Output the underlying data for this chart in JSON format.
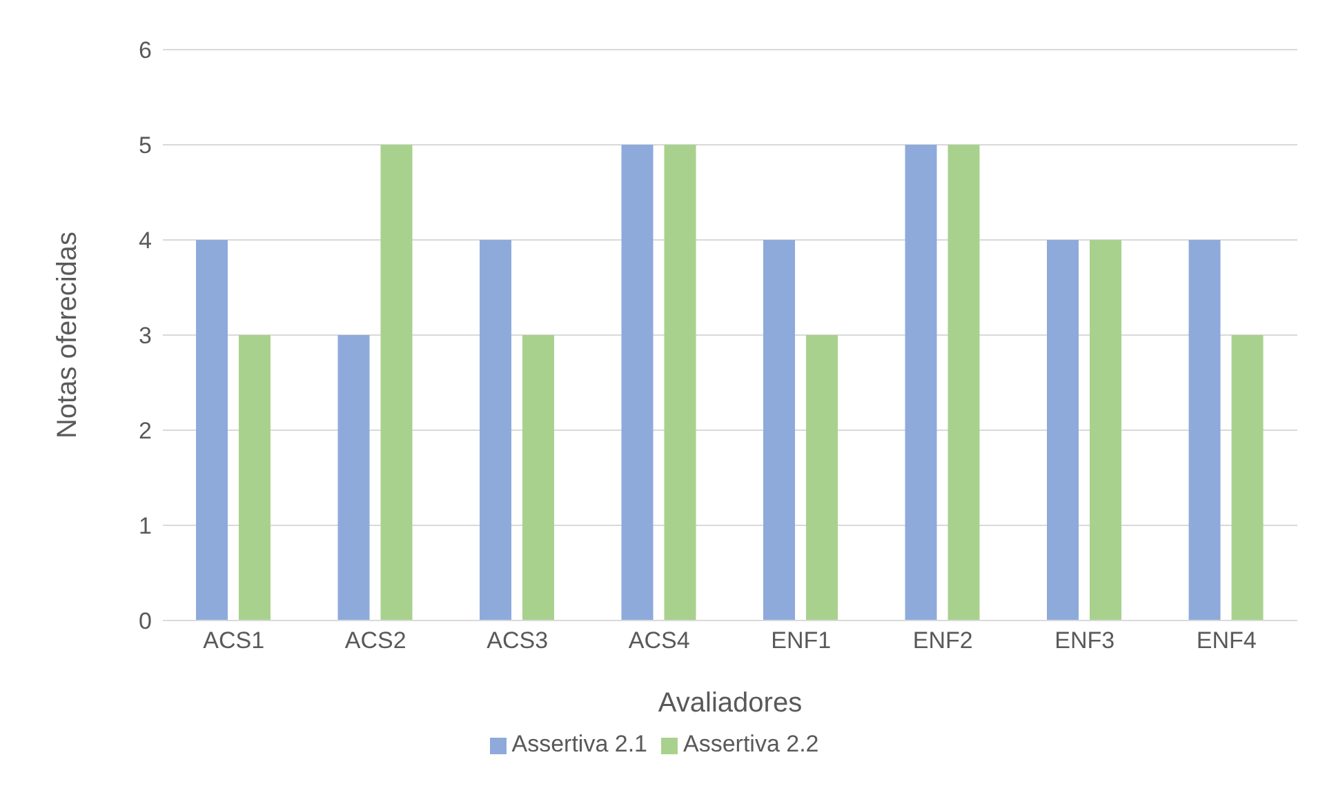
{
  "chart_data": {
    "type": "bar",
    "xlabel": "Avaliadores",
    "ylabel": "Notas oferecidas",
    "categories": [
      "ACS1",
      "ACS2",
      "ACS3",
      "ACS4",
      "ENF1",
      "ENF2",
      "ENF3",
      "ENF4"
    ],
    "series": [
      {
        "name": "Assertiva 2.1",
        "color": "#8eaadb",
        "values": [
          4,
          3,
          4,
          5,
          4,
          5,
          4,
          4
        ]
      },
      {
        "name": "Assertiva 2.2",
        "color": "#a9d18e",
        "values": [
          3,
          5,
          3,
          5,
          3,
          5,
          4,
          3
        ]
      }
    ],
    "ylim": [
      0,
      6
    ],
    "yticks": [
      0,
      1,
      2,
      3,
      4,
      5,
      6
    ],
    "grid": "y",
    "legend": "bottom"
  }
}
